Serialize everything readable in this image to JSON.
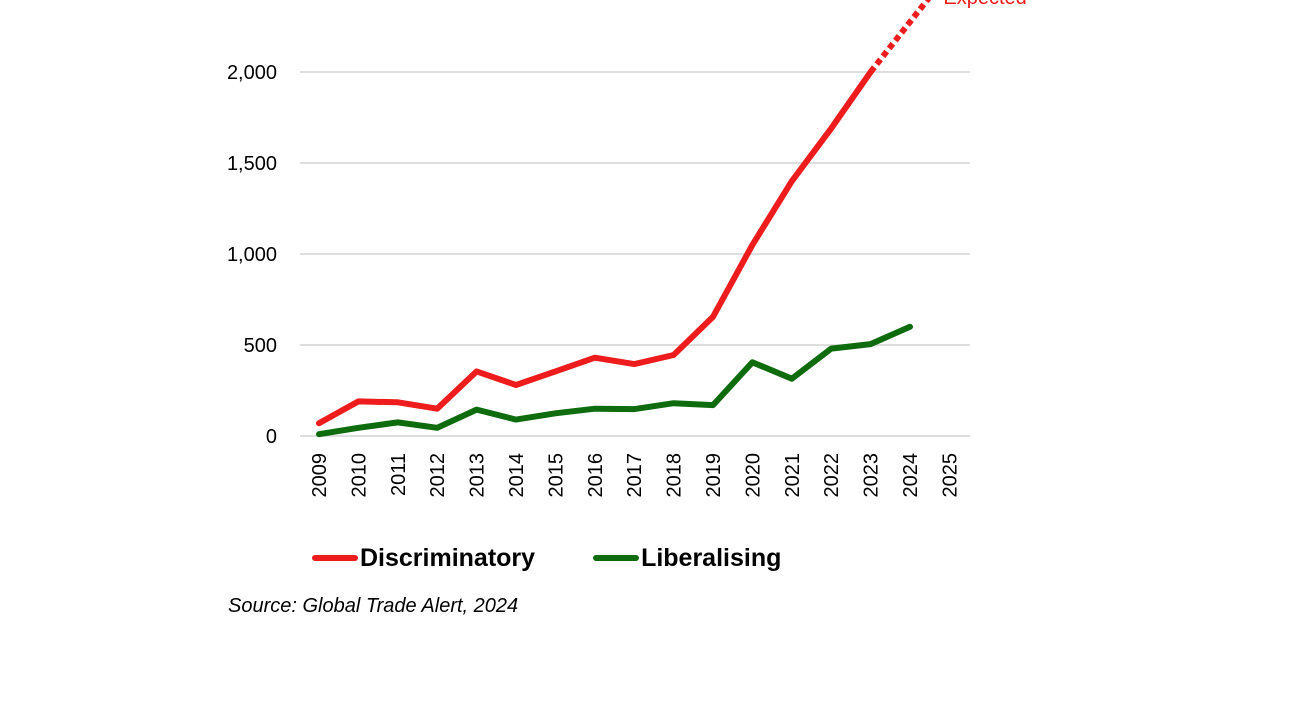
{
  "chart_data": {
    "type": "line",
    "title": "",
    "xlabel": "",
    "ylabel": "",
    "x": [
      "2009",
      "2010",
      "2011",
      "2012",
      "2013",
      "2014",
      "2015",
      "2016",
      "2017",
      "2018",
      "2019",
      "2020",
      "2021",
      "2022",
      "2023",
      "2024",
      "2025"
    ],
    "ylim": [
      0,
      2000
    ],
    "yticks": [
      0,
      500,
      1000,
      1500,
      2000
    ],
    "ytick_labels": [
      "0",
      "500",
      "1,000",
      "1,500",
      "2,000"
    ],
    "grid": true,
    "legend_position": "bottom",
    "series": [
      {
        "name": "Discriminatory",
        "color": "#ee1c1c",
        "values": [
          70,
          190,
          185,
          150,
          355,
          280,
          355,
          430,
          395,
          445,
          655,
          1050,
          1400,
          1690,
          2000,
          null,
          null
        ],
        "projection": {
          "label": "Expected",
          "x": [
            "2023",
            "2025"
          ],
          "values": [
            2000,
            2550
          ]
        }
      },
      {
        "name": "Liberalising",
        "color": "#0e6b0e",
        "values": [
          10,
          45,
          75,
          45,
          145,
          90,
          125,
          150,
          148,
          180,
          170,
          405,
          315,
          480,
          505,
          600,
          null
        ]
      }
    ],
    "annotations": [
      {
        "text": "Expected",
        "color": "#ee1c1c"
      }
    ]
  },
  "source_note": "Source: Global Trade Alert, 2024"
}
